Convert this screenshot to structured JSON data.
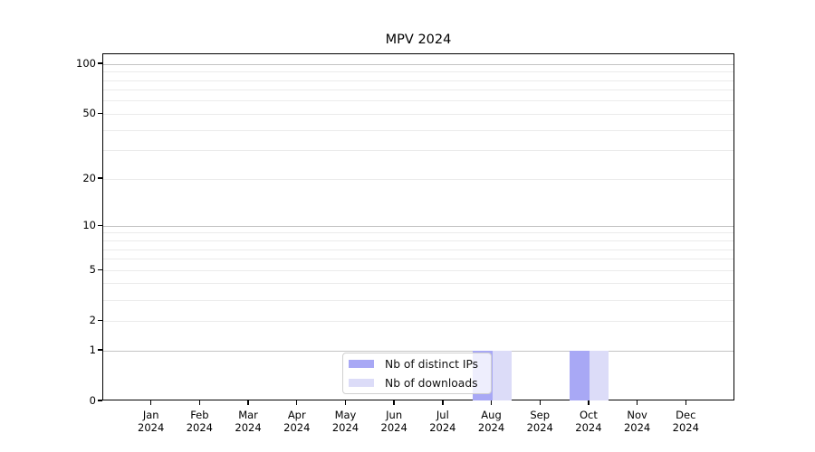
{
  "chart_data": {
    "type": "bar",
    "title": "MPV 2024",
    "categories": [
      "Jan",
      "Feb",
      "Mar",
      "Apr",
      "May",
      "Jun",
      "Jul",
      "Aug",
      "Sep",
      "Oct",
      "Nov",
      "Dec"
    ],
    "category_year": "2024",
    "series": [
      {
        "name": "Nb of distinct IPs",
        "color": "#a8a8f5",
        "values": [
          0,
          0,
          0,
          0,
          0,
          0,
          0,
          1,
          0,
          1,
          0,
          0
        ]
      },
      {
        "name": "Nb of downloads",
        "color": "#dcdcf8",
        "values": [
          0,
          0,
          0,
          0,
          0,
          0,
          0,
          1,
          0,
          1,
          0,
          0
        ]
      }
    ],
    "xlabel": "",
    "ylabel": "",
    "yscale": "log1p",
    "ylim": [
      0,
      115
    ],
    "yticks_labeled": [
      0,
      1,
      2,
      5,
      10,
      20,
      50,
      100
    ],
    "gridlines_major": [
      1,
      10,
      100
    ],
    "gridlines_minor": [
      2,
      3,
      4,
      5,
      6,
      7,
      8,
      9,
      20,
      30,
      40,
      50,
      60,
      70,
      80,
      90
    ],
    "grid": "on",
    "legend_position": "lower center-left inside plot",
    "colors": {
      "major_grid": "#c4c4c4",
      "minor_grid": "#ebebeb",
      "axis_border": "#000000",
      "background": "#ffffff",
      "text": "#000000"
    }
  }
}
